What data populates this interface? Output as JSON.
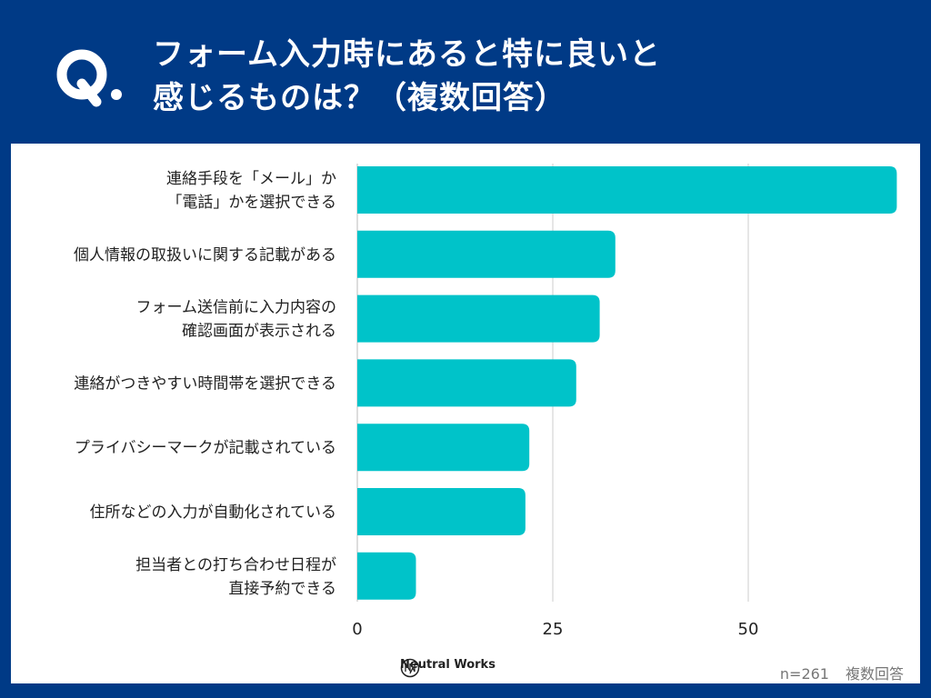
{
  "header": {
    "q_label": "Q.",
    "title_line1": "フォーム入力時にあると特に良いと",
    "title_line2": "感じるものは？（複数回答）"
  },
  "chart_data": {
    "type": "bar",
    "orientation": "horizontal",
    "categories": [
      [
        "連絡手段を「メール」か",
        "「電話」かを選択できる"
      ],
      [
        "個人情報の取扱いに関する記載がある"
      ],
      [
        "フォーム送信前に入力内容の",
        "確認画面が表示される"
      ],
      [
        "連絡がつきやすい時間帯を選択できる"
      ],
      [
        "プライバシーマークが記載されている"
      ],
      [
        "住所などの入力が自動化されている"
      ],
      [
        "担当者との打ち合わせ日程が",
        "直接予約できる"
      ]
    ],
    "values": [
      69,
      33,
      31,
      28,
      22,
      21.5,
      7.5
    ],
    "xlim": [
      0,
      70
    ],
    "xticks": [
      0,
      25,
      50
    ],
    "grid": true,
    "bar_color": "#00c3c9"
  },
  "footer": {
    "brand": "Neutral Works",
    "sample": "n=261",
    "note": "複数回答"
  },
  "colors": {
    "background": "#003a86",
    "bar": "#00c3c9"
  }
}
